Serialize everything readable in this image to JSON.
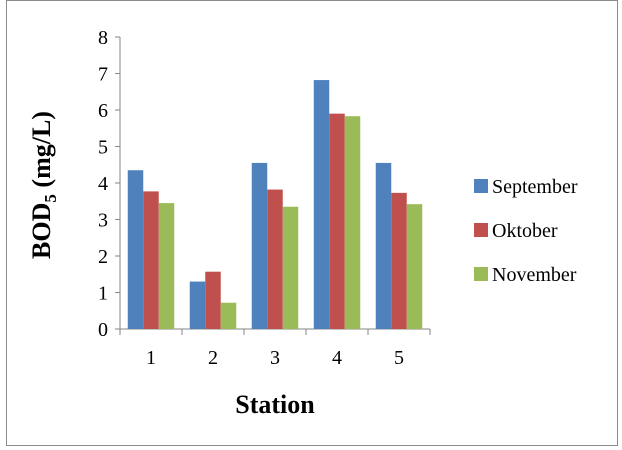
{
  "chart_data": {
    "type": "bar",
    "categories": [
      "1",
      "2",
      "3",
      "4",
      "5"
    ],
    "series": [
      {
        "name": "September",
        "color": "#4F81BD",
        "values": [
          4.35,
          1.3,
          4.55,
          6.82,
          4.55
        ]
      },
      {
        "name": "Oktober",
        "color": "#C0504D",
        "values": [
          3.77,
          1.57,
          3.82,
          5.9,
          3.73
        ]
      },
      {
        "name": "November",
        "color": "#9BBB59",
        "values": [
          3.45,
          0.72,
          3.35,
          5.83,
          3.42
        ]
      }
    ],
    "title": "",
    "xlabel": "Station",
    "ylabel": {
      "main": "BOD",
      "sub": "5",
      "unit": " (mg/L)"
    },
    "ylim": [
      0,
      8
    ],
    "yticks": [
      "0",
      "1",
      "2",
      "3",
      "4",
      "5",
      "6",
      "7",
      "8"
    ],
    "grid": false,
    "legend_position": "right"
  }
}
